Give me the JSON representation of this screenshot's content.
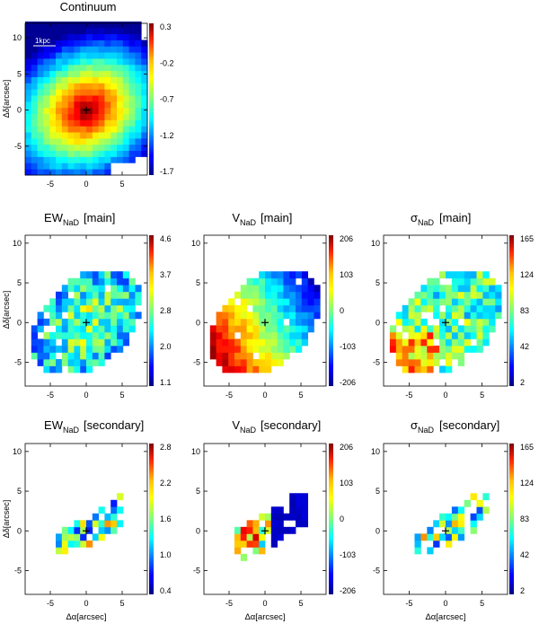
{
  "figure": {
    "plots": {
      "continuum": {
        "title": "Continuum",
        "sub": "",
        "var": "",
        "scalebar": "1kpc"
      },
      "ew_main": {
        "title": "EW",
        "sub": "NaD",
        "var": "[main]"
      },
      "v_main": {
        "title": "V",
        "sub": "NaD",
        "var": "[main]"
      },
      "sig_main": {
        "title": "σ",
        "sub": "NaD",
        "var": "[main]"
      },
      "ew_sec": {
        "title": "EW",
        "sub": "NaD",
        "var": "[secondary]"
      },
      "v_sec": {
        "title": "V",
        "sub": "NaD",
        "var": "[secondary]"
      },
      "sig_sec": {
        "title": "σ",
        "sub": "NaD",
        "var": "[secondary]"
      }
    },
    "y_axis_label": "Δδ[arcsec]",
    "x_axis_label": "Δα[arcsec]"
  },
  "chart_data": [
    {
      "type": "heatmap",
      "id": "continuum",
      "title": "Continuum",
      "xlabel": "",
      "ylabel": "Δδ[arcsec]",
      "xlim": [
        -8.5,
        8.5
      ],
      "ylim": [
        -9,
        12
      ],
      "xticks": [
        -5,
        0,
        5
      ],
      "yticks": [
        -5,
        0,
        5,
        10
      ],
      "colorbar_ticks": [
        "0.3",
        "-0.2",
        "-0.7",
        "-1.2",
        "-1.7"
      ],
      "colorbar_range": [
        0.3,
        -1.7
      ],
      "center_marker": [
        0,
        0
      ]
    },
    {
      "type": "heatmap",
      "id": "ew_main",
      "title": "EW_NaD [main]",
      "xlabel": "",
      "ylabel": "Δδ[arcsec]",
      "xlim": [
        -8.5,
        8.5
      ],
      "ylim": [
        -8,
        11
      ],
      "xticks": [
        -5,
        0,
        5
      ],
      "yticks": [
        -5,
        0,
        5,
        10
      ],
      "colorbar_ticks": [
        "4.6",
        "3.7",
        "2.8",
        "2.0",
        "1.1"
      ],
      "colorbar_range": [
        4.6,
        1.1
      ],
      "center_marker": [
        0,
        0
      ]
    },
    {
      "type": "heatmap",
      "id": "v_main",
      "title": "V_NaD [main]",
      "xlabel": "",
      "ylabel": "",
      "xlim": [
        -8.5,
        8.5
      ],
      "ylim": [
        -8,
        11
      ],
      "xticks": [
        -5,
        0,
        5
      ],
      "yticks": [
        -5,
        0,
        5,
        10
      ],
      "colorbar_ticks": [
        "206",
        "103",
        "0",
        "-103",
        "-206"
      ],
      "colorbar_range": [
        206,
        -206
      ],
      "center_marker": [
        0,
        0
      ]
    },
    {
      "type": "heatmap",
      "id": "sig_main",
      "title": "σ_NaD [main]",
      "xlabel": "",
      "ylabel": "",
      "xlim": [
        -8.5,
        8.5
      ],
      "ylim": [
        -8,
        11
      ],
      "xticks": [
        -5,
        0,
        5
      ],
      "yticks": [
        -5,
        0,
        5,
        10
      ],
      "colorbar_ticks": [
        "165",
        "124",
        "83",
        "42",
        "2"
      ],
      "colorbar_range": [
        165,
        2
      ],
      "center_marker": [
        0,
        0
      ]
    },
    {
      "type": "heatmap",
      "id": "ew_sec",
      "title": "EW_NaD [secondary]",
      "xlabel": "Δα[arcsec]",
      "ylabel": "Δδ[arcsec]",
      "xlim": [
        -8.5,
        8.5
      ],
      "ylim": [
        -8,
        11
      ],
      "xticks": [
        -5,
        0,
        5
      ],
      "yticks": [
        -5,
        0,
        5,
        10
      ],
      "colorbar_ticks": [
        "2.8",
        "2.2",
        "1.6",
        "1.0",
        "0.4"
      ],
      "colorbar_range": [
        2.8,
        0.4
      ],
      "center_marker": [
        0,
        0
      ]
    },
    {
      "type": "heatmap",
      "id": "v_sec",
      "title": "V_NaD [secondary]",
      "xlabel": "Δα[arcsec]",
      "ylabel": "",
      "xlim": [
        -8.5,
        8.5
      ],
      "ylim": [
        -8,
        11
      ],
      "xticks": [
        -5,
        0,
        5
      ],
      "yticks": [
        -5,
        0,
        5,
        10
      ],
      "colorbar_ticks": [
        "206",
        "103",
        "0",
        "-103",
        "-206"
      ],
      "colorbar_range": [
        206,
        -206
      ],
      "center_marker": [
        0,
        0
      ]
    },
    {
      "type": "heatmap",
      "id": "sig_sec",
      "title": "σ_NaD [secondary]",
      "xlabel": "Δα[arcsec]",
      "ylabel": "",
      "xlim": [
        -8.5,
        8.5
      ],
      "ylim": [
        -8,
        11
      ],
      "xticks": [
        -5,
        0,
        5
      ],
      "yticks": [
        -5,
        0,
        5,
        10
      ],
      "colorbar_ticks": [
        "165",
        "124",
        "83",
        "42",
        "2"
      ],
      "colorbar_range": [
        165,
        2
      ],
      "center_marker": [
        0,
        0
      ]
    }
  ]
}
